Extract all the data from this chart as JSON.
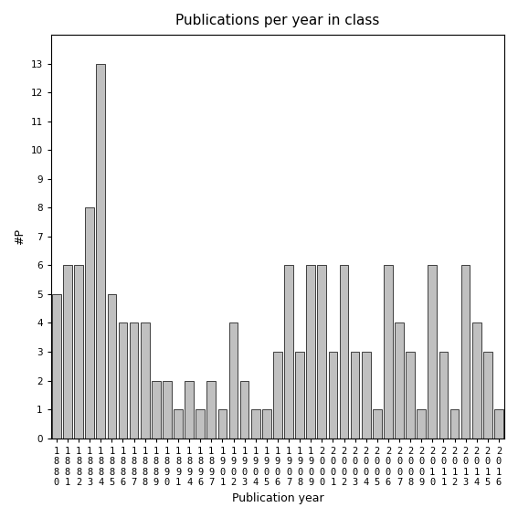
{
  "title": "Publications per year in class",
  "xlabel": "Publication year",
  "ylabel": "#P",
  "bar_color": "#c0c0c0",
  "edge_color": "#000000",
  "background_color": "#ffffff",
  "years": [
    1880,
    1881,
    1882,
    1883,
    1884,
    1885,
    1886,
    1887,
    1888,
    1889,
    1890,
    1891,
    1894,
    1896,
    1897,
    1901,
    1902,
    1903,
    1904,
    1905,
    1906,
    1907,
    1908,
    1909,
    2000,
    2001,
    2002,
    2003,
    2004,
    2005,
    2006,
    2007,
    2008,
    2009,
    2010,
    2011,
    2012,
    2013,
    2014,
    2015,
    2016
  ],
  "values": [
    5,
    6,
    6,
    8,
    13,
    5,
    4,
    4,
    4,
    2,
    2,
    1,
    2,
    1,
    2,
    1,
    4,
    2,
    1,
    1,
    3,
    6,
    3,
    6,
    6,
    3,
    6,
    3,
    3,
    1,
    6,
    4,
    3,
    1,
    6,
    3,
    1,
    6,
    4,
    3,
    1
  ],
  "ylim": [
    0,
    14
  ],
  "yticks": [
    0,
    1,
    2,
    3,
    4,
    5,
    6,
    7,
    8,
    9,
    10,
    11,
    12,
    13
  ],
  "title_fontsize": 11,
  "label_fontsize": 9,
  "tick_fontsize": 7.5
}
